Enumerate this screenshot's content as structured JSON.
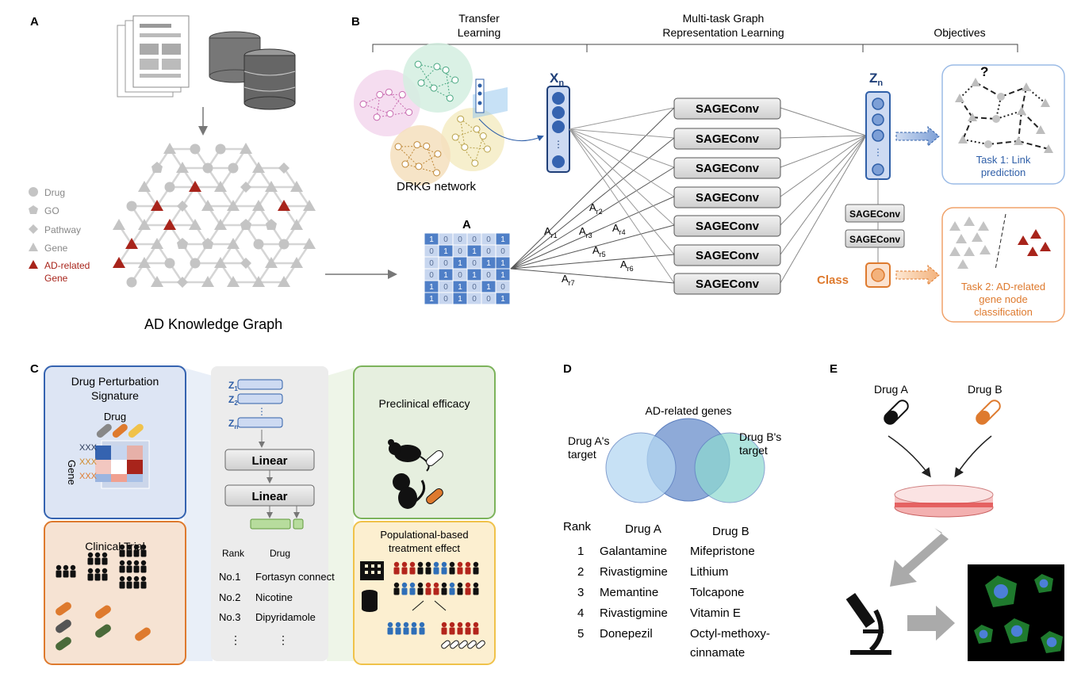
{
  "panels": {
    "A": {
      "letter": "A",
      "legend": [
        "Drug",
        "GO",
        "Pathway",
        "Gene",
        "AD-related",
        "Gene"
      ],
      "title": "AD Knowledge Graph"
    },
    "B": {
      "letter": "B",
      "sections": [
        "Transfer",
        "Learning",
        "Multi-task Graph",
        "Representation Learning",
        "Objectives"
      ],
      "network_label": "DRKG network",
      "xn": "X",
      "xn_sub": "n",
      "zn": "Z",
      "zn_sub": "n",
      "matrix_label": "A",
      "matrix_rows": [
        [
          "1",
          "0",
          "0",
          "0",
          "0",
          "1"
        ],
        [
          "0",
          "1",
          "0",
          "1",
          "0",
          "0"
        ],
        [
          "0",
          "0",
          "1",
          "0",
          "1",
          "1"
        ],
        [
          "0",
          "1",
          "0",
          "1",
          "0",
          "1"
        ],
        [
          "1",
          "0",
          "1",
          "0",
          "1",
          "0"
        ],
        [
          "1",
          "0",
          "1",
          "0",
          "0",
          "1"
        ]
      ],
      "edges": [
        "A",
        "r1",
        "r2",
        "r3",
        "r4",
        "r5",
        "r6",
        "r7"
      ],
      "layer": "SAGEConv",
      "class_label": "Class",
      "task1": [
        "Task 1: Link",
        "prediction"
      ],
      "task2": [
        "Task 2: AD-related",
        "gene node",
        "classification"
      ],
      "question": "?"
    },
    "C": {
      "letter": "C",
      "box1": [
        "Drug Perturbation",
        "Signature"
      ],
      "drug": "Drug",
      "gene": "Gene",
      "box2": "Clinical Trial",
      "z": [
        "Z",
        "1",
        "2",
        "n"
      ],
      "linear": "Linear",
      "rank_header": [
        "Rank",
        "Drug"
      ],
      "ranks": [
        {
          "rank": "No.1",
          "drug": "Fortasyn connect"
        },
        {
          "rank": "No.2",
          "drug": "Nicotine"
        },
        {
          "rank": "No.3",
          "drug": "Dipyridamole"
        }
      ],
      "dots": "⋮",
      "box3": "Preclinical efficacy",
      "box4": [
        "Populational-based",
        "treatment effect"
      ]
    },
    "D": {
      "letter": "D",
      "venn": [
        "AD-related genes",
        "Drug A's",
        "target",
        "Drug B's",
        "target"
      ],
      "header": [
        "Rank",
        "Drug A",
        "Drug B"
      ],
      "rows": [
        {
          "rank": "1",
          "a": "Galantamine",
          "b": "Mifepristone"
        },
        {
          "rank": "2",
          "a": "Rivastigmine",
          "b": "Lithium"
        },
        {
          "rank": "3",
          "a": "Memantine",
          "b": "Tolcapone"
        },
        {
          "rank": "4",
          "a": "Rivastigmine",
          "b": "Vitamin E"
        },
        {
          "rank": "5",
          "a": "Donepezil",
          "b": "Octyl-methoxy-"
        }
      ],
      "row5_extra": "cinnamate"
    },
    "E": {
      "letter": "E",
      "drugs": [
        "Drug A",
        "Drug B"
      ]
    }
  },
  "colors": {
    "accent_blue": "#2f5fa8",
    "node_blue": "#3563b0",
    "ad_red": "#a8241b",
    "orange": "#de7a2e",
    "gray_node": "#c4c4c4",
    "box_gray": "#b5b5b5",
    "green": "#7cb35b",
    "yellow": "#f0c24a"
  }
}
